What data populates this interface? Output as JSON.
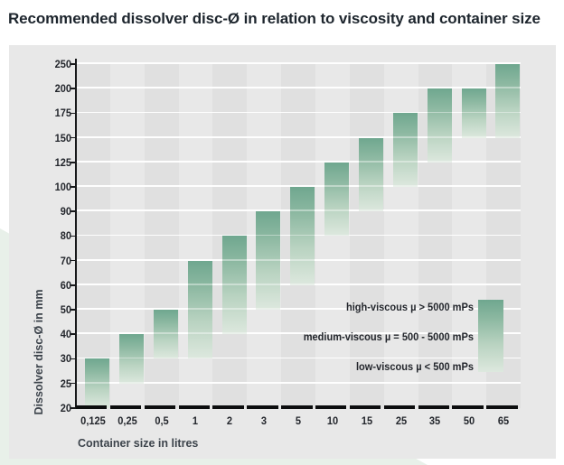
{
  "title": "Recommended dissolver disc-Ø in relation to viscosity and container size",
  "chart_data": {
    "type": "bar",
    "variant": "vertical-range-columns",
    "title": "Recommended dissolver disc-Ø in relation to viscosity and container size",
    "xlabel": "Container size in litres",
    "ylabel": "Dissolver disc-Ø in mm",
    "y_scale": "ordinal-equal-spacing",
    "y_ticks": [
      250,
      200,
      175,
      150,
      125,
      100,
      90,
      80,
      70,
      60,
      50,
      40,
      30,
      25,
      20
    ],
    "grid": "horizontal-white-lines",
    "background": "alternating-grey-column-bands",
    "categories": [
      "0,125",
      "0,25",
      "0,5",
      "1",
      "2",
      "3",
      "5",
      "10",
      "15",
      "25",
      "35",
      "50",
      "65"
    ],
    "bars": [
      {
        "category": "0,125",
        "max": 30,
        "min": 20
      },
      {
        "category": "0,25",
        "max": 40,
        "min": 25
      },
      {
        "category": "0,5",
        "max": 50,
        "min": 30
      },
      {
        "category": "1",
        "max": 70,
        "min": 30
      },
      {
        "category": "2",
        "max": 80,
        "min": 40
      },
      {
        "category": "3",
        "max": 90,
        "min": 50
      },
      {
        "category": "5",
        "max": 100,
        "min": 60
      },
      {
        "category": "10",
        "max": 125,
        "min": 80
      },
      {
        "category": "15",
        "max": 150,
        "min": 90
      },
      {
        "category": "25",
        "max": 175,
        "min": 100
      },
      {
        "category": "35",
        "max": 200,
        "min": 125
      },
      {
        "category": "50",
        "max": 200,
        "min": 150
      },
      {
        "category": "65",
        "max": 250,
        "min": 150
      }
    ],
    "legend_position": "inside-right",
    "legend": [
      {
        "label": "high-viscous µ > 5000 mPs",
        "gradient_position": "top"
      },
      {
        "label": "medium-viscous µ = 500 - 5000 mPs",
        "gradient_position": "middle"
      },
      {
        "label": "low-viscous µ < 500 mPs",
        "gradient_position": "bottom"
      }
    ]
  },
  "colors": {
    "bar_gradient_top": "#6fa78f",
    "bar_gradient_bottom": "#dde8de",
    "panel_background": "#e8e8e8",
    "band_dark": "#e0e0e0",
    "band_light": "#e8e8e8",
    "page_background": "#ffffff",
    "corner_wedge": "#e8f0e9",
    "axis_black": "#0c0d0e",
    "text_dark": "#23262c"
  }
}
